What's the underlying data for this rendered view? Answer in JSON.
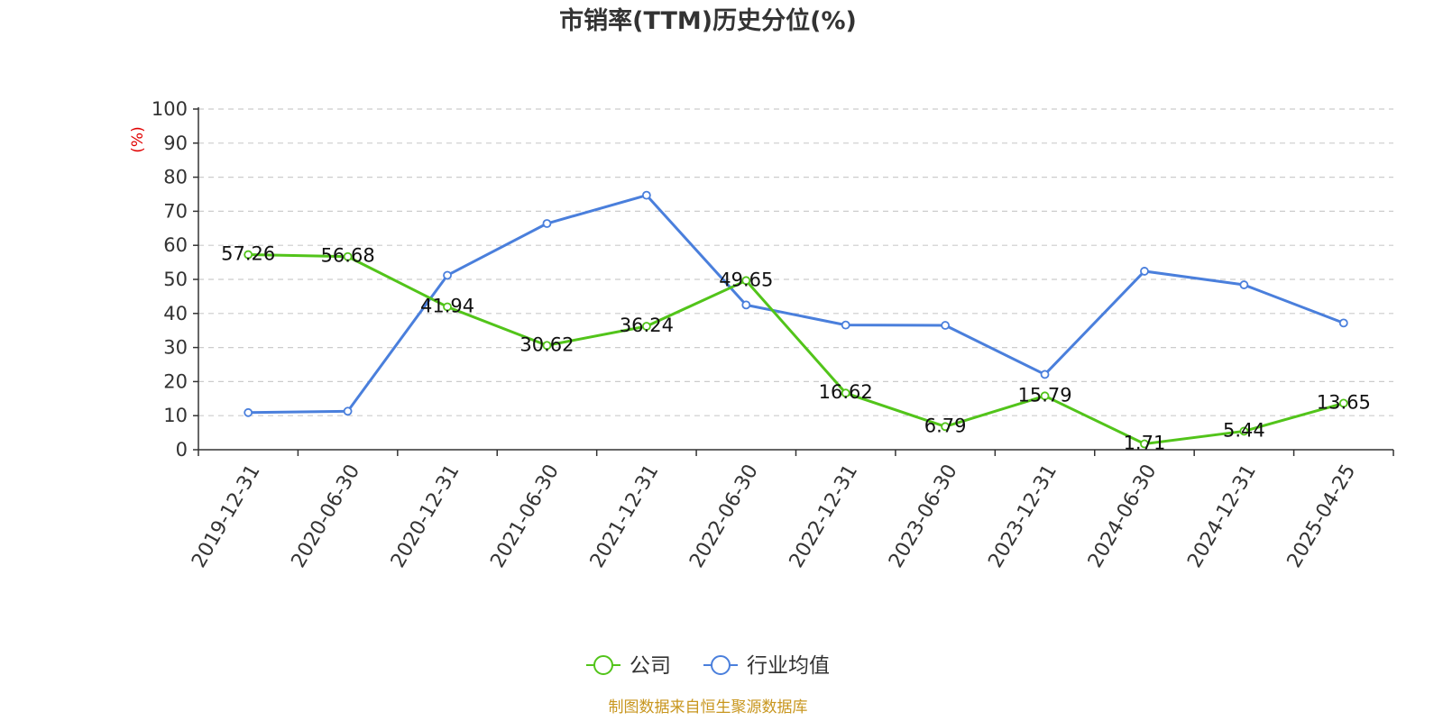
{
  "chart_data": {
    "type": "line",
    "title": "市销率(TTM)历史分位(%)",
    "ylabel": "(%)",
    "xlabel": "",
    "ylim": [
      0,
      100
    ],
    "yticks": [
      0,
      10,
      20,
      30,
      40,
      50,
      60,
      70,
      80,
      90,
      100
    ],
    "categories": [
      "2019-12-31",
      "2020-06-30",
      "2020-12-31",
      "2021-06-30",
      "2021-12-31",
      "2022-06-30",
      "2022-12-31",
      "2023-06-30",
      "2023-12-31",
      "2024-06-30",
      "2024-12-31",
      "2025-04-25"
    ],
    "grid": true,
    "legend_position": "bottom-center",
    "series": [
      {
        "name": "公司",
        "color": "#52c41a",
        "show_labels": true,
        "values": [
          57.26,
          56.68,
          41.94,
          30.62,
          36.24,
          49.65,
          16.62,
          6.79,
          15.79,
          1.71,
          5.44,
          13.65
        ]
      },
      {
        "name": "行业均值",
        "color": "#4a7fdc",
        "show_labels": false,
        "values": [
          10.9,
          11.3,
          51.2,
          66.4,
          74.7,
          42.5,
          36.6,
          36.5,
          22.1,
          52.4,
          48.4,
          37.2
        ]
      }
    ]
  },
  "footer": {
    "source": "制图数据来自恒生聚源数据库"
  }
}
